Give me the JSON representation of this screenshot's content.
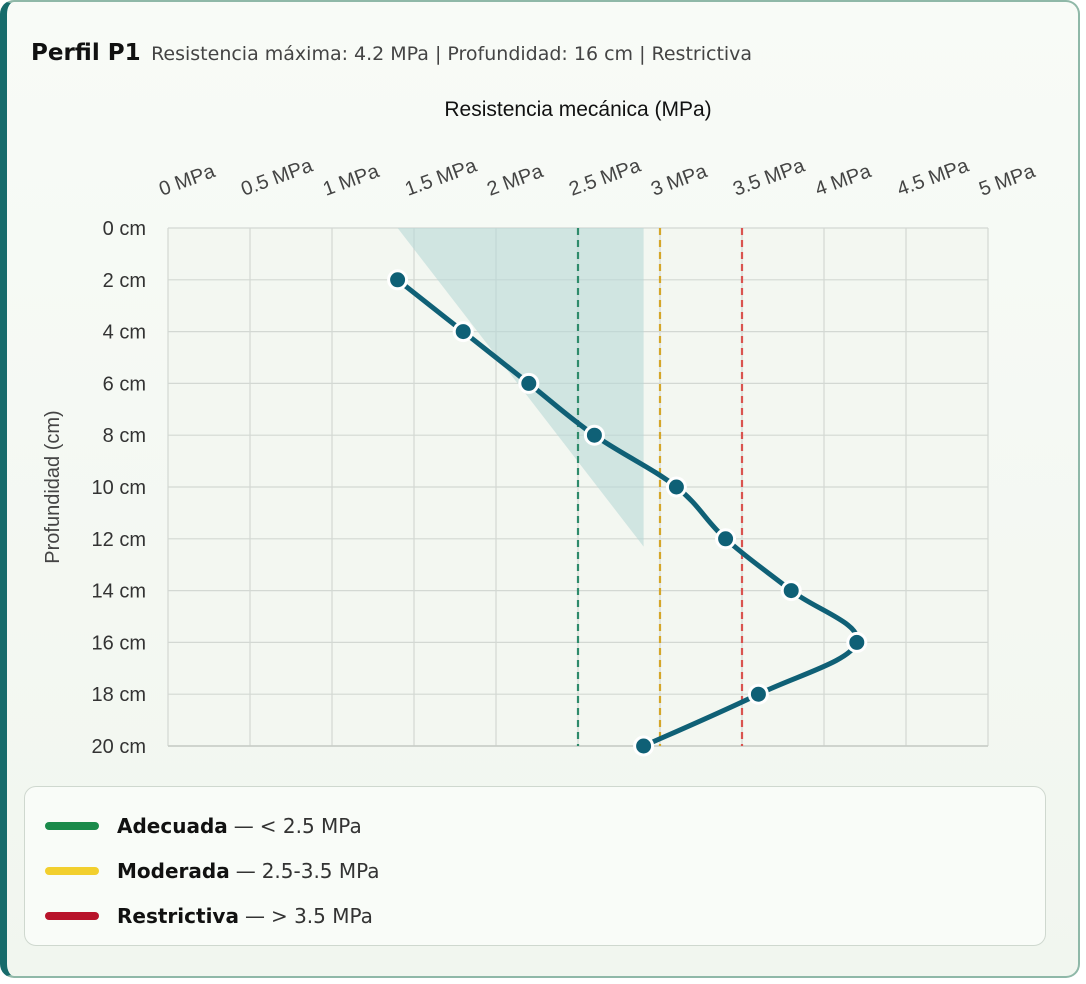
{
  "header": {
    "title": "Perfil P1",
    "subtitle": "Resistencia máxima: 4.2 MPa | Profundidad: 16 cm | Restrictiva"
  },
  "chart_data": {
    "type": "line",
    "title": "",
    "xlabel": "Resistencia mecánica (MPa)",
    "ylabel": "Profundidad (cm)",
    "xlim": [
      0,
      5
    ],
    "ylim": [
      0,
      20
    ],
    "x_axis_position": "top",
    "y_axis_inverted": true,
    "grid": true,
    "x_ticks": [
      "0 MPa",
      "0.5 MPa",
      "1 MPa",
      "1.5 MPa",
      "2 MPa",
      "2.5 MPa",
      "3 MPa",
      "3.5 MPa",
      "4 MPa",
      "4.5 MPa",
      "5 MPa"
    ],
    "y_ticks": [
      "0 cm",
      "2 cm",
      "4 cm",
      "6 cm",
      "8 cm",
      "10 cm",
      "12 cm",
      "14 cm",
      "16 cm",
      "18 cm",
      "20 cm"
    ],
    "series": [
      {
        "depth": [
          2,
          4,
          6,
          8,
          10,
          12,
          14,
          16,
          18,
          20
        ],
        "resistance": [
          1.4,
          1.8,
          2.2,
          2.6,
          3.1,
          3.4,
          3.8,
          4.2,
          3.6,
          2.9
        ],
        "color": "#0f6076"
      }
    ],
    "shaded_region": {
      "color": "#b9d9d7",
      "polygon_x": [
        1.4,
        2.9,
        2.9
      ],
      "polygon_y": [
        0,
        0,
        12.3
      ]
    },
    "reference_lines": [
      {
        "x": 2.5,
        "color": "#2e8b6b"
      },
      {
        "x": 3.0,
        "color": "#d4a62a"
      },
      {
        "x": 3.5,
        "color": "#d9534f"
      }
    ]
  },
  "legend": {
    "items": [
      {
        "name": "Adecuada",
        "range": "< 2.5 MPa",
        "color": "#1a8a4a"
      },
      {
        "name": "Moderada",
        "range": "2.5-3.5 MPa",
        "color": "#f2cf2e"
      },
      {
        "name": "Restrictiva",
        "range": "> 3.5 MPa",
        "color": "#b8132a"
      }
    ]
  }
}
